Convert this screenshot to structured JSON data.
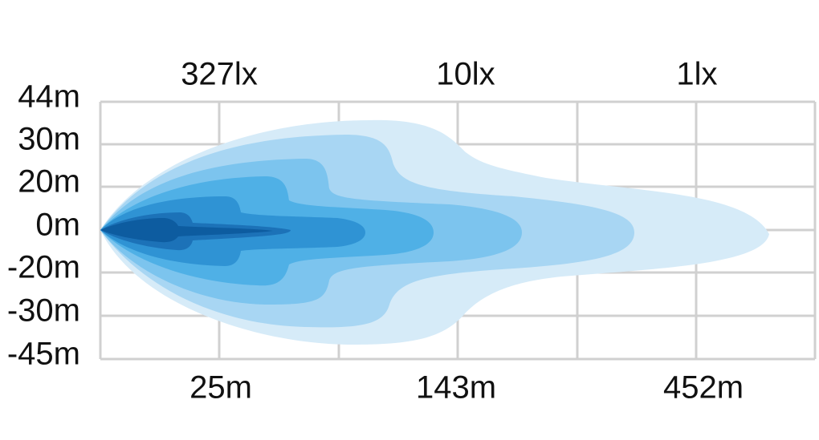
{
  "y_labels": [
    "44m",
    "30m",
    "20m",
    "0m",
    "-20m",
    "-30m",
    "-45m"
  ],
  "top_labels": [
    "327lx",
    "10lx",
    "1lx"
  ],
  "bottom_labels": [
    "25m",
    "143m",
    "452m"
  ]
}
